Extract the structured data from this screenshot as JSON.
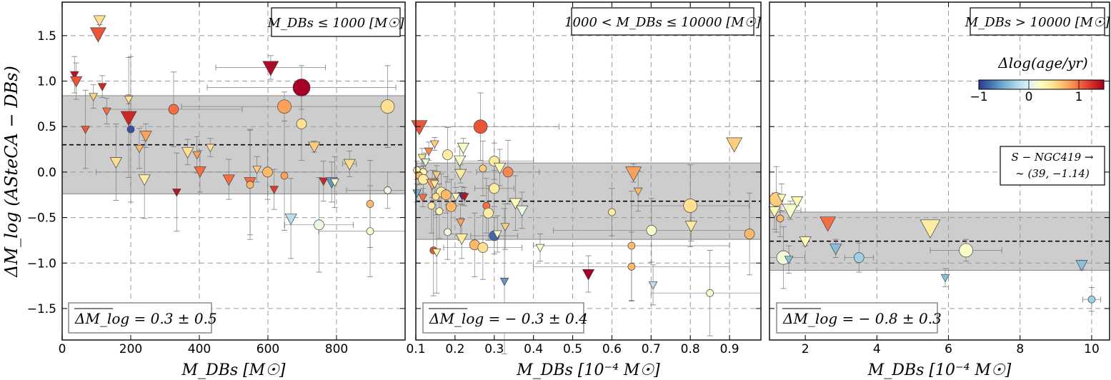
{
  "chart_data": {
    "type": "scatter",
    "ylabel": "ΔM_log (ASteCA − DBs)",
    "ylim": [
      -1.846,
      1.868
    ],
    "yticks": [
      -1.5,
      -1.0,
      -0.5,
      0.0,
      0.5,
      1.0,
      1.5
    ],
    "grid": true,
    "colorbar": {
      "label": "Δlog(age/yr)",
      "range": [
        -1,
        1.5
      ],
      "ticks": [
        -1,
        0,
        1
      ],
      "colormap": [
        "#313695",
        "#4575b4",
        "#74add1",
        "#abd9e9",
        "#e0f3f8",
        "#ffffbf",
        "#fee090",
        "#fdae61",
        "#f46d43",
        "#d73027",
        "#a50026"
      ]
    },
    "point_format": [
      "x",
      "y",
      "marker",
      "size_class",
      "color_value",
      "y_err",
      "x_err"
    ],
    "panels": [
      {
        "title": "M_DBs ≤ 1000 [M☉]",
        "xlabel": "M_DBs [M☉]",
        "xlim": [
          0,
          1000
        ],
        "xticks": [
          0,
          200,
          400,
          600,
          800
        ],
        "mean": 0.3,
        "std": 0.54,
        "stat_label": "ΔM_log = 0.3 ± 0.5",
        "points": [
          [
            109,
            1.67,
            "v",
            2,
            0.5,
            0.05,
            0
          ],
          [
            105,
            1.52,
            "v",
            3,
            1.1,
            0.05,
            0
          ],
          [
            36,
            1.07,
            "v",
            1,
            1.4,
            0.2,
            0
          ],
          [
            41,
            1.0,
            "v",
            2,
            1.1,
            0.2,
            0
          ],
          [
            117,
            0.94,
            "v",
            1,
            1.3,
            0.12,
            0
          ],
          [
            91,
            0.83,
            "v",
            1,
            0.6,
            0.13,
            0
          ],
          [
            130,
            0.67,
            "v",
            1,
            1.0,
            0.14,
            0
          ],
          [
            194,
            0.6,
            "v",
            3,
            1.3,
            0.66,
            0
          ],
          [
            194,
            0.8,
            "v",
            1,
            0.5,
            0.05,
            0
          ],
          [
            200,
            0.47,
            "o",
            1,
            -0.9,
            0.8,
            0
          ],
          [
            68,
            0.47,
            "v",
            1,
            1.1,
            0.43,
            0
          ],
          [
            244,
            0.4,
            "v",
            2,
            0.8,
            0.13,
            0
          ],
          [
            225,
            0.26,
            "v",
            1,
            0.7,
            0.22,
            0
          ],
          [
            157,
            0.11,
            "v",
            2,
            0.5,
            0.42,
            0
          ],
          [
            240,
            -0.08,
            "v",
            2,
            0.4,
            0.43,
            0
          ],
          [
            325,
            0.69,
            "o",
            2,
            1.0,
            0.41,
            200
          ],
          [
            334,
            -0.22,
            "v",
            1,
            1.4,
            0.43,
            0
          ],
          [
            366,
            0.22,
            "v",
            2,
            0.5,
            0.14,
            0
          ],
          [
            393,
            0.19,
            "v",
            1,
            0.8,
            0.2,
            0
          ],
          [
            402,
            0.01,
            "v",
            2,
            1.0,
            0.23,
            0
          ],
          [
            432,
            0.27,
            "v",
            1,
            0.5,
            0.1,
            0
          ],
          [
            486,
            -0.08,
            "v",
            2,
            1.0,
            0.22,
            0
          ],
          [
            548,
            -0.11,
            "v",
            2,
            1.0,
            0.58,
            0
          ],
          [
            548,
            -0.14,
            "o",
            1,
            0.7,
            0.6,
            0
          ],
          [
            568,
            0.03,
            "v",
            1,
            0.6,
            0.14,
            0
          ],
          [
            599,
            0.0,
            "o",
            2,
            0.7,
            0.3,
            500
          ],
          [
            618,
            -0.19,
            "v",
            1,
            1.2,
            0.22,
            0
          ],
          [
            648,
            -0.04,
            "o",
            1,
            0.8,
            0.6,
            0
          ],
          [
            648,
            0.72,
            "o",
            3,
            0.8,
            0.16,
            300
          ],
          [
            608,
            1.15,
            "v",
            3,
            1.45,
            0.13,
            160
          ],
          [
            698,
            0.93,
            "o",
            4,
            1.5,
            0.24,
            275
          ],
          [
            698,
            0.53,
            "o",
            2,
            0.5,
            0.4,
            0
          ],
          [
            667,
            -0.51,
            "v",
            2,
            -0.2,
            0.44,
            0
          ],
          [
            749,
            -0.58,
            "o",
            2,
            0.1,
            0.52,
            100
          ],
          [
            735,
            0.28,
            "v",
            2,
            0.6,
            0.06,
            0
          ],
          [
            762,
            -0.1,
            "v",
            1,
            1.3,
            0.22,
            0
          ],
          [
            786,
            -0.11,
            "v",
            2,
            -0.6,
            0.22,
            0
          ],
          [
            795,
            -0.11,
            "v",
            1,
            0.2,
            0.28,
            0
          ],
          [
            838,
            0.09,
            "v",
            2,
            0.5,
            0.14,
            20
          ],
          [
            898,
            -0.35,
            "o",
            1,
            0.7,
            0.48,
            0
          ],
          [
            898,
            -0.65,
            "o",
            1,
            0.2,
            0.5,
            150
          ],
          [
            949,
            -0.2,
            "o",
            1,
            0.1,
            0.2,
            120
          ],
          [
            949,
            0.72,
            "o",
            3,
            0.5,
            0.45,
            0
          ]
        ]
      },
      {
        "title": "1000 < M_DBs ≤ 10000 [M☉]",
        "xlabel": "M_DBs [10⁻⁴ M☉]",
        "xlim": [
          0.1,
          0.98
        ],
        "xticks": [
          0.1,
          0.2,
          0.3,
          0.4,
          0.5,
          0.6,
          0.7,
          0.8,
          0.9
        ],
        "mean": -0.32,
        "std": 0.42,
        "stat_label": "ΔM_log = − 0.3 ± 0.4",
        "points": [
          [
            0.109,
            0.5,
            "v",
            3,
            1.1,
            0.05,
            0
          ],
          [
            0.265,
            0.5,
            "o",
            3,
            1.1,
            0.37,
            0.2
          ],
          [
            0.148,
            0.31,
            "v",
            1,
            0.6,
            0.07,
            0
          ],
          [
            0.221,
            0.27,
            "v",
            2,
            0.2,
            0.1,
            0
          ],
          [
            0.133,
            0.23,
            "v",
            1,
            0.9,
            0.1,
            0
          ],
          [
            0.181,
            0.19,
            "o",
            2,
            0.4,
            0.3,
            0
          ],
          [
            0.116,
            0.16,
            "v",
            1,
            0.5,
            0.1,
            0
          ],
          [
            0.125,
            0.11,
            "v",
            1,
            0.1,
            0.1,
            0
          ],
          [
            0.212,
            0.13,
            "v",
            2,
            0.2,
            0.15,
            0
          ],
          [
            0.3,
            0.12,
            "o",
            2,
            0.4,
            0.2,
            0.1
          ],
          [
            0.271,
            0.04,
            "o",
            1,
            0.6,
            0.3,
            0
          ],
          [
            0.314,
            0.05,
            "v",
            2,
            0.3,
            0.2,
            0
          ],
          [
            0.335,
            0.0,
            "o",
            2,
            0.9,
            0.35,
            0.08
          ],
          [
            0.214,
            -0.02,
            "v",
            2,
            0.4,
            0.1,
            0
          ],
          [
            0.103,
            0.02,
            "o",
            1,
            0.3,
            0.1,
            0
          ],
          [
            0.119,
            0.0,
            "o",
            1,
            0.3,
            0.1,
            0
          ],
          [
            0.109,
            -0.04,
            "o",
            1,
            0.7,
            0.1,
            0
          ],
          [
            0.119,
            -0.08,
            "o",
            2,
            0.4,
            0.15,
            0
          ],
          [
            0.153,
            -0.03,
            "v",
            1,
            0.6,
            0.1,
            0
          ],
          [
            0.142,
            -0.13,
            "v",
            2,
            0.8,
            0.15,
            0
          ],
          [
            0.148,
            -0.13,
            "v",
            1,
            0.4,
            0.15,
            0
          ],
          [
            0.3,
            -0.18,
            "o",
            2,
            0.4,
            0.2,
            0.05
          ],
          [
            0.165,
            -0.22,
            "o",
            2,
            0.4,
            0.2,
            0
          ],
          [
            0.103,
            -0.23,
            "v",
            1,
            -0.5,
            0.1,
            0
          ],
          [
            0.177,
            -0.25,
            "o",
            2,
            0.7,
            0.2,
            0
          ],
          [
            0.218,
            -0.26,
            "v",
            1,
            -1.0,
            0.1,
            0
          ],
          [
            0.224,
            -0.27,
            "v",
            1,
            1.4,
            0.1,
            0
          ],
          [
            0.202,
            -0.27,
            "v",
            1,
            0.3,
            0.1,
            0
          ],
          [
            0.151,
            -0.27,
            "o",
            1,
            0.5,
            0.2,
            0
          ],
          [
            0.118,
            -0.28,
            "v",
            1,
            1.0,
            0.1,
            0
          ],
          [
            0.19,
            -0.38,
            "o",
            2,
            0.7,
            0.3,
            0
          ],
          [
            0.14,
            -0.37,
            "o",
            1,
            0.4,
            0.3,
            0
          ],
          [
            0.16,
            -0.43,
            "o",
            1,
            0.3,
            0.3,
            0
          ],
          [
            0.28,
            -0.37,
            "o",
            1,
            1.0,
            0.3,
            0
          ],
          [
            0.285,
            -0.45,
            "o",
            2,
            0.4,
            0.3,
            0
          ],
          [
            0.354,
            -0.34,
            "v",
            2,
            0.3,
            0.3,
            0
          ],
          [
            0.371,
            -0.42,
            "v",
            2,
            0.1,
            0.2,
            0
          ],
          [
            0.214,
            -0.55,
            "v",
            1,
            0.8,
            0.2,
            0
          ],
          [
            0.181,
            -0.66,
            "o",
            1,
            0.1,
            0.3,
            0
          ],
          [
            0.217,
            -0.73,
            "v",
            2,
            0.4,
            0.22,
            0
          ],
          [
            0.328,
            -0.6,
            "v",
            1,
            0.6,
            0.25,
            0
          ],
          [
            0.3,
            -0.7,
            "o",
            2,
            -0.8,
            0.2,
            0.06
          ],
          [
            0.308,
            -0.68,
            "v",
            1,
            0.2,
            0.2,
            0
          ],
          [
            0.25,
            -0.8,
            "o",
            2,
            0.7,
            0.35,
            0
          ],
          [
            0.271,
            -0.83,
            "o",
            2,
            0.5,
            0.35,
            0.1
          ],
          [
            0.145,
            -0.86,
            "o",
            1,
            1.1,
            0.5,
            0
          ],
          [
            0.153,
            -0.88,
            "v",
            1,
            0.3,
            0.45,
            0
          ],
          [
            0.326,
            -1.2,
            "v",
            1,
            -0.6,
            0.8,
            0
          ],
          [
            0.655,
            -0.01,
            "v",
            3,
            0.8,
            0.1,
            0
          ],
          [
            0.667,
            -0.21,
            "v",
            1,
            0.7,
            0.22,
            0
          ],
          [
            0.912,
            0.31,
            "v",
            3,
            0.6,
            0.05,
            0
          ],
          [
            0.6,
            -0.44,
            "o",
            1,
            0.4,
            0.26,
            0
          ],
          [
            0.8,
            -0.37,
            "o",
            3,
            0.5,
            0.45,
            0.15
          ],
          [
            0.802,
            -0.59,
            "v",
            2,
            0.4,
            0.17,
            0
          ],
          [
            0.701,
            -0.64,
            "o",
            2,
            0.2,
            0.35,
            0.25
          ],
          [
            0.951,
            -0.68,
            "o",
            2,
            0.7,
            0.45,
            0
          ],
          [
            0.417,
            -0.83,
            "v",
            1,
            0.2,
            0.15,
            0
          ],
          [
            0.65,
            -0.81,
            "o",
            1,
            0.7,
            0.6,
            0.25
          ],
          [
            0.65,
            -1.04,
            "o",
            1,
            0.7,
            0.38,
            0.25
          ],
          [
            0.54,
            -1.12,
            "v",
            2,
            1.5,
            0.2,
            0
          ],
          [
            0.705,
            -1.24,
            "v",
            1,
            -0.2,
            0.22,
            0
          ],
          [
            0.85,
            -1.33,
            "o",
            1,
            0.2,
            0.47,
            0.15
          ]
        ]
      },
      {
        "title": "M_DBs > 10000 [M☉]",
        "xlabel": "M_DBs [10⁻⁴ M☉]",
        "xlim": [
          1.0,
          10.5
        ],
        "xticks": [
          2,
          4,
          6,
          8,
          10
        ],
        "mean": -0.76,
        "std": 0.32,
        "stat_label": "ΔM_log = − 0.8 ± 0.3",
        "annotation": [
          "S − NGC419 →",
          "∼ (39, −1.14)"
        ],
        "points": [
          [
            1.19,
            -0.3,
            "o",
            3,
            0.6,
            0.36,
            0
          ],
          [
            1.14,
            -0.43,
            "v",
            2,
            0.3,
            0.2,
            0
          ],
          [
            1.34,
            -0.28,
            "v",
            1,
            0.3,
            0.15,
            0
          ],
          [
            1.3,
            -0.51,
            "o",
            1,
            0.7,
            0.2,
            0
          ],
          [
            1.58,
            -0.42,
            "v",
            3,
            0.2,
            0.1,
            0.3
          ],
          [
            1.77,
            -0.32,
            "v",
            2,
            0.3,
            0.05,
            0
          ],
          [
            2.63,
            -0.56,
            "v",
            3,
            1.0,
            0.05,
            0
          ],
          [
            2.0,
            -0.76,
            "v",
            2,
            0.3,
            0.05,
            0
          ],
          [
            5.49,
            -0.61,
            "v",
            4,
            0.4,
            0.05,
            0
          ],
          [
            2.85,
            -0.84,
            "v",
            2,
            -0.4,
            0.1,
            0
          ],
          [
            1.39,
            -0.94,
            "o",
            3,
            0.15,
            0.34,
            0.6
          ],
          [
            1.54,
            -0.96,
            "v",
            1,
            -0.4,
            0.15,
            0
          ],
          [
            3.5,
            -0.94,
            "o",
            2,
            -0.3,
            0.16,
            0.4
          ],
          [
            6.49,
            -0.86,
            "o",
            3,
            0.2,
            0.12,
            1.0
          ],
          [
            9.72,
            -1.02,
            "v",
            2,
            -0.4,
            0.05,
            0
          ],
          [
            5.91,
            -1.16,
            "v",
            1,
            -0.4,
            0.1,
            0
          ],
          [
            10.0,
            -1.4,
            "o",
            1,
            -0.3,
            0.13,
            0.25
          ]
        ]
      }
    ]
  }
}
